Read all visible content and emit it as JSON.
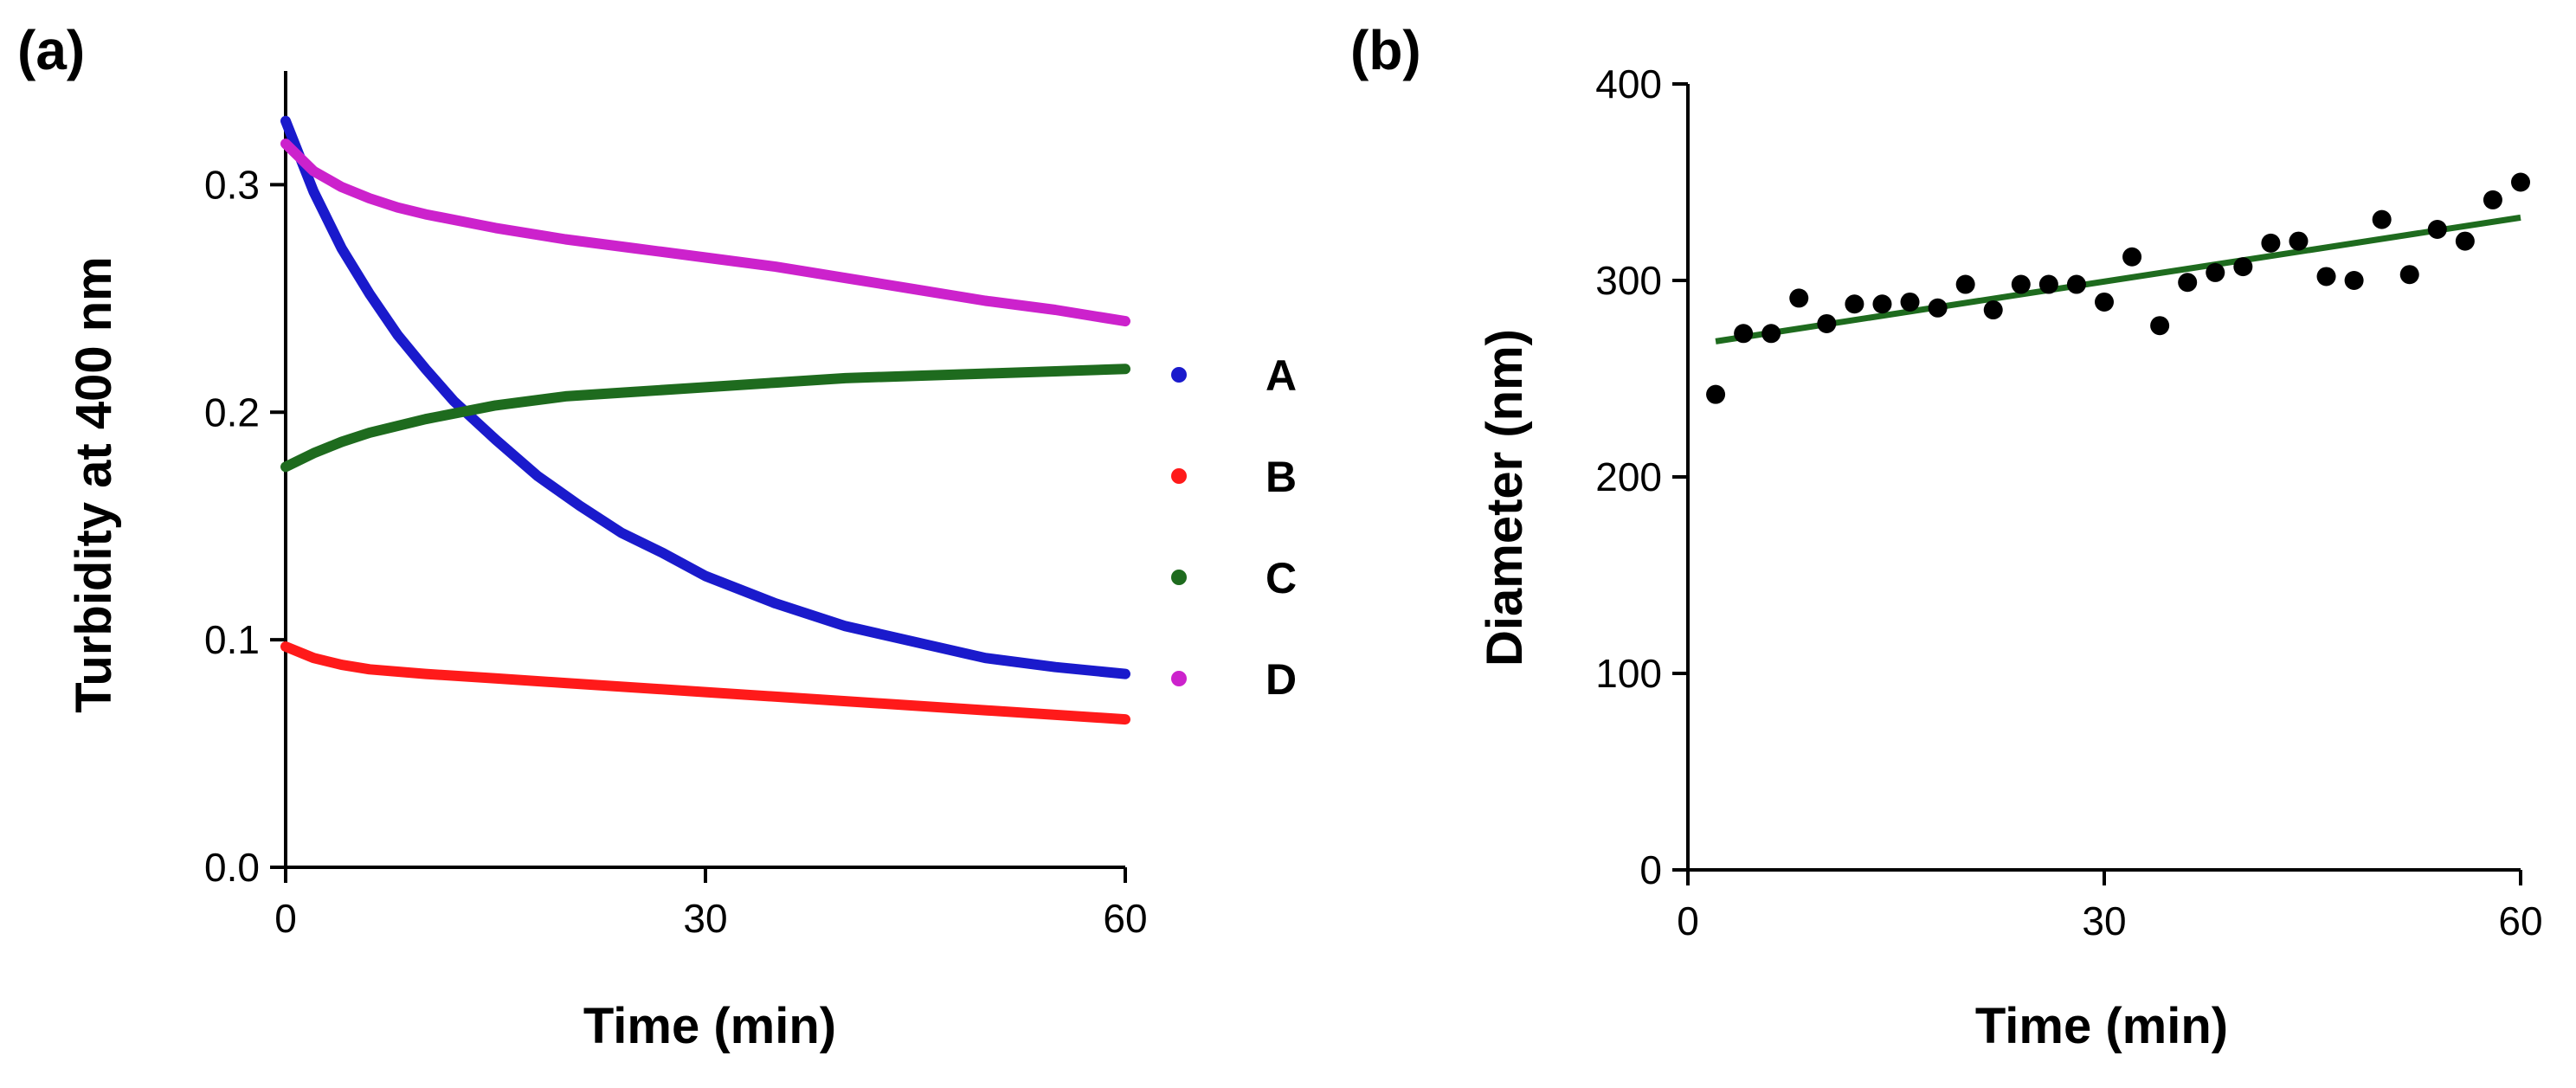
{
  "chart_data": [
    {
      "panel": "(a)",
      "type": "line",
      "xlabel": "Time (min)",
      "ylabel": "Turbidity at 400 nm",
      "xlim": [
        0,
        60
      ],
      "ylim": [
        0,
        0.35
      ],
      "xticks": [
        "0",
        "30",
        "60"
      ],
      "yticks": [
        "0.0",
        "0.1",
        "0.2",
        "0.3"
      ],
      "legend_position": "right",
      "series": [
        {
          "name": "A",
          "color": "#1a1acc",
          "x": [
            0,
            2,
            4,
            6,
            8,
            10,
            12,
            15,
            18,
            21,
            24,
            27,
            30,
            35,
            40,
            45,
            50,
            55,
            60
          ],
          "y": [
            0.328,
            0.297,
            0.272,
            0.252,
            0.234,
            0.219,
            0.205,
            0.188,
            0.172,
            0.159,
            0.147,
            0.138,
            0.128,
            0.116,
            0.106,
            0.099,
            0.092,
            0.088,
            0.085
          ]
        },
        {
          "name": "B",
          "color": "#ff1a1a",
          "x": [
            0,
            2,
            4,
            6,
            10,
            15,
            20,
            30,
            40,
            50,
            60
          ],
          "y": [
            0.097,
            0.092,
            0.089,
            0.087,
            0.085,
            0.083,
            0.081,
            0.077,
            0.073,
            0.069,
            0.065
          ]
        },
        {
          "name": "C",
          "color": "#1e6b1e",
          "x": [
            0,
            2,
            4,
            6,
            8,
            10,
            15,
            20,
            25,
            30,
            35,
            40,
            45,
            50,
            55,
            60
          ],
          "y": [
            0.176,
            0.182,
            0.187,
            0.191,
            0.194,
            0.197,
            0.203,
            0.207,
            0.209,
            0.211,
            0.213,
            0.215,
            0.216,
            0.217,
            0.218,
            0.219
          ]
        },
        {
          "name": "D",
          "color": "#cc22cc",
          "x": [
            0,
            2,
            4,
            6,
            8,
            10,
            15,
            20,
            25,
            30,
            35,
            40,
            45,
            50,
            55,
            60
          ],
          "y": [
            0.318,
            0.306,
            0.299,
            0.294,
            0.29,
            0.287,
            0.281,
            0.276,
            0.272,
            0.268,
            0.264,
            0.259,
            0.254,
            0.249,
            0.245,
            0.24
          ]
        }
      ]
    },
    {
      "panel": "(b)",
      "type": "scatter",
      "xlabel": "Time (min)",
      "ylabel": "Diameter (nm)",
      "xlim": [
        0,
        60
      ],
      "ylim": [
        0,
        400
      ],
      "xticks": [
        "0",
        "30",
        "60"
      ],
      "yticks": [
        "0",
        "100",
        "200",
        "300",
        "400"
      ],
      "points_color": "#000000",
      "fit_color": "#1e6b1e",
      "points": {
        "x": [
          2,
          4,
          6,
          8,
          10,
          12,
          14,
          16,
          18,
          20,
          22,
          24,
          26,
          28,
          30,
          32,
          34,
          36,
          38,
          40,
          42,
          44,
          46,
          48,
          50,
          52,
          54,
          56,
          58,
          60
        ],
        "y": [
          242,
          273,
          273,
          291,
          278,
          288,
          288,
          289,
          286,
          298,
          285,
          298,
          298,
          298,
          289,
          312,
          277,
          299,
          304,
          307,
          319,
          320,
          302,
          300,
          331,
          303,
          326,
          320,
          341,
          350
        ]
      },
      "fit_line": {
        "x": [
          2,
          60
        ],
        "y": [
          269,
          332
        ]
      }
    }
  ]
}
